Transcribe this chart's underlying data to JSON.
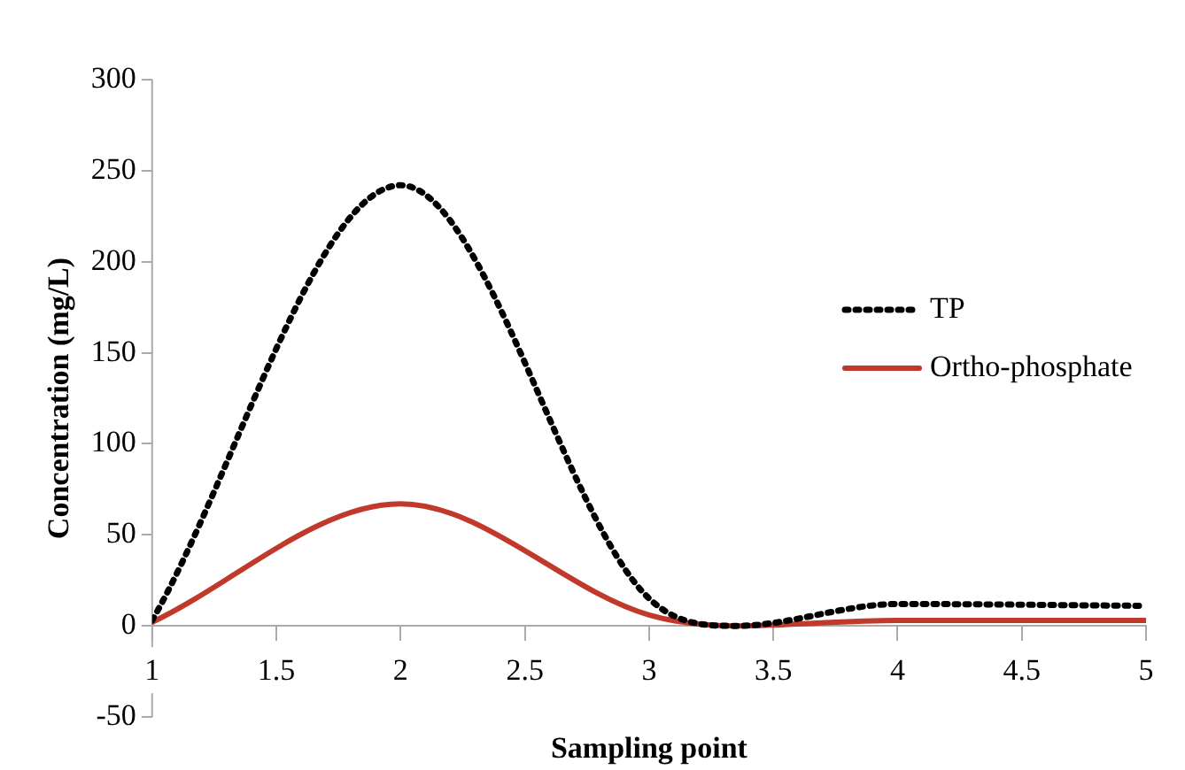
{
  "chart_data": {
    "type": "line",
    "xlabel": "Sampling point",
    "ylabel": "Concentration (mg/L)",
    "x": [
      1,
      2,
      3,
      3.35,
      4,
      5
    ],
    "series": [
      {
        "name": "TP",
        "color": "#000000",
        "line_style": "dotted",
        "values": [
          3,
          242,
          15,
          0,
          12,
          11
        ]
      },
      {
        "name": "Ortho-phosphate",
        "color": "#c0392b",
        "line_style": "solid",
        "values": [
          2,
          67,
          6,
          0,
          3,
          3
        ]
      }
    ],
    "xlim": [
      1,
      5
    ],
    "xticks": [
      1,
      1.5,
      2,
      2.5,
      3,
      3.5,
      4,
      4.5,
      5
    ],
    "ylim": [
      -50,
      300
    ],
    "yticks": [
      -50,
      0,
      50,
      100,
      150,
      200,
      250,
      300
    ],
    "grid": false,
    "legend": "right",
    "marker": "none"
  }
}
